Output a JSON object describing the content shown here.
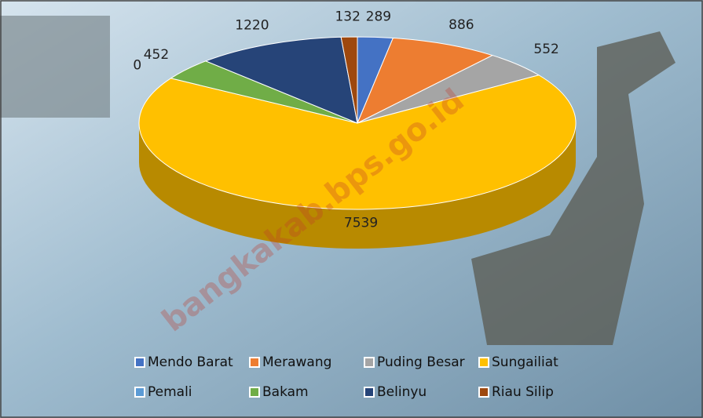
{
  "chart_data": {
    "type": "pie",
    "categories": [
      "Mendo Barat",
      "Merawang",
      "Puding Besar",
      "Sungailiat",
      "Pemali",
      "Bakam",
      "Belinyu",
      "Riau Silip"
    ],
    "values": [
      289,
      886,
      552,
      7539,
      0,
      452,
      1220,
      132
    ],
    "colors": [
      "#4472c4",
      "#ed7d31",
      "#a5a5a5",
      "#ffc000",
      "#5b9bd5",
      "#70ad47",
      "#264478",
      "#9e480e"
    ],
    "watermark": "bangkakab.bps.go.id"
  }
}
